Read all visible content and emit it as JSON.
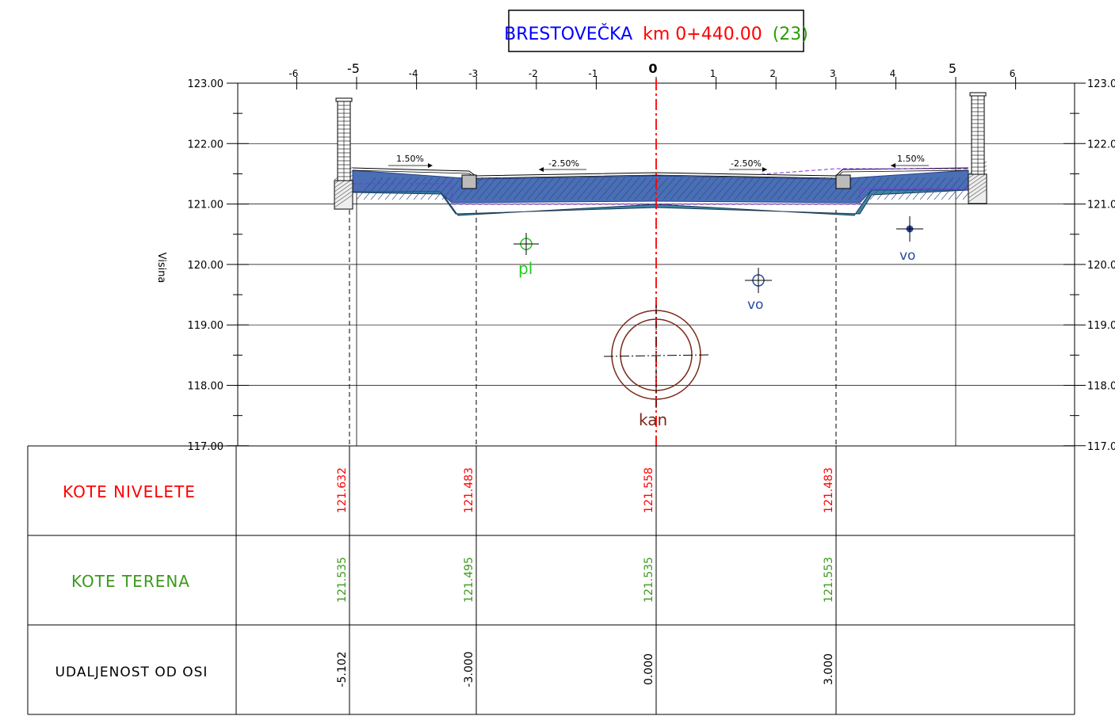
{
  "title": {
    "road": "BRESTOVEČKA",
    "station": "km 0+440.00",
    "number": "(23)"
  },
  "colors": {
    "road": "#0000ff",
    "station": "#ff0000",
    "number": "#2a9d00",
    "nivelete": "#ff0000",
    "terena": "#3a9a1a",
    "pavement": "#4a6fb5",
    "pavement_dark": "#3d5ea8",
    "subbase": "#3d86a4",
    "axis": "#ff0000",
    "kan": "#7a2a1a",
    "pl": "#22cc22",
    "vo": "#2a4aa0"
  },
  "axis_label": "Visina",
  "x_ticks": [
    "-6",
    "-5",
    "-4",
    "-3",
    "-2",
    "-1",
    "0",
    "1",
    "2",
    "3",
    "4",
    "5",
    "6"
  ],
  "y_ticks": [
    "123.00",
    "122.00",
    "121.00",
    "120.00",
    "119.00",
    "118.00",
    "117.00"
  ],
  "slopes": {
    "left_outer": "1.50%",
    "left_inner": "-2.50%",
    "right_inner": "-2.50%",
    "right_outer": "1.50%"
  },
  "utilities": {
    "pl": "pl",
    "vo_right": "vo",
    "vo_mid": "vo",
    "kan": "kan"
  },
  "table": {
    "rows": [
      {
        "label": "KOTE NIVELETE",
        "values": [
          "121.632",
          "121.483",
          "121.558",
          "121.483"
        ]
      },
      {
        "label": "KOTE TERENA",
        "values": [
          "121.535",
          "121.495",
          "121.535",
          "121.553"
        ]
      },
      {
        "label": "UDALJENOST OD OSI",
        "values": [
          "-5.102",
          "-3.000",
          "0.000",
          "3.000"
        ]
      }
    ]
  }
}
